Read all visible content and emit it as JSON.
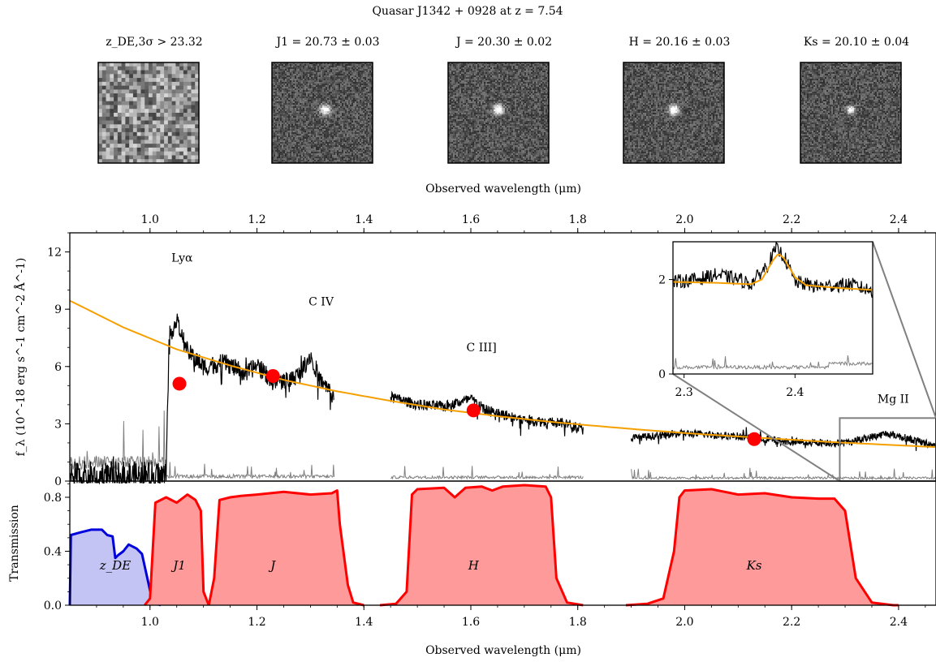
{
  "title": "Quasar J1342 + 0928 at z = 7.54",
  "stamps": [
    {
      "label": "z_DE,3σ > 23.32",
      "band": "zDE",
      "detected": false
    },
    {
      "label": "J1 = 20.73 ± 0.03",
      "band": "J1",
      "detected": true,
      "brightness": 0.85
    },
    {
      "label": "J = 20.30 ± 0.02",
      "band": "J",
      "detected": true,
      "brightness": 1.0
    },
    {
      "label": "H = 20.16 ± 0.03",
      "band": "H",
      "detected": true,
      "brightness": 0.95
    },
    {
      "label": "Ks = 20.10 ± 0.04",
      "band": "Ks",
      "detected": true,
      "brightness": 0.8
    }
  ],
  "colors": {
    "spectrum": "#000000",
    "noise": "#808080",
    "model": "#f5a000",
    "photometry": "#ff0000",
    "filter_red_fill": "#ff9a9a",
    "filter_red_line": "#ff0000",
    "filter_blue_fill": "#c4c4f4",
    "filter_blue_line": "#0000dd",
    "inset_box": "#808080"
  },
  "chart_data": [
    {
      "type": "line",
      "panel": "spectrum",
      "xlabel": "Observed wavelength (μm)",
      "ylabel": "f_λ (10^-18 erg s^-1 cm^-2 Å^-1)",
      "xlim": [
        0.85,
        2.47
      ],
      "ylim": [
        0,
        13
      ],
      "xticks": [
        1.0,
        1.2,
        1.4,
        1.6,
        1.8,
        2.0,
        2.2,
        2.4
      ],
      "yticks": [
        0,
        3,
        6,
        9,
        12
      ],
      "top_axis_ticks": [
        1.0,
        1.2,
        1.4,
        1.6,
        1.8,
        2.0,
        2.2,
        2.4
      ],
      "line_labels": [
        {
          "text": "Lyα",
          "x": 1.06,
          "y": 11.5
        },
        {
          "text": "C IV",
          "x": 1.32,
          "y": 9.2
        },
        {
          "text": "C III]",
          "x": 1.62,
          "y": 6.8
        },
        {
          "text": "Mg II",
          "x": 2.39,
          "y": 4.1
        }
      ],
      "model_continuum": [
        [
          0.85,
          9.45
        ],
        [
          0.95,
          8.05
        ],
        [
          1.05,
          6.9
        ],
        [
          1.15,
          6.05
        ],
        [
          1.25,
          5.3
        ],
        [
          1.35,
          4.7
        ],
        [
          1.45,
          4.2
        ],
        [
          1.55,
          3.75
        ],
        [
          1.65,
          3.4
        ],
        [
          1.75,
          3.1
        ],
        [
          1.85,
          2.85
        ],
        [
          1.95,
          2.62
        ],
        [
          2.05,
          2.42
        ],
        [
          2.15,
          2.25
        ],
        [
          2.25,
          2.08
        ],
        [
          2.35,
          1.94
        ],
        [
          2.47,
          1.78
        ]
      ],
      "spectrum_segments": [
        {
          "x_range": [
            0.85,
            1.03
          ],
          "level": 0.25,
          "scatter": 1.0
        },
        {
          "x_range": [
            1.03,
            1.345
          ],
          "anchors": [
            [
              1.03,
              0.5
            ],
            [
              1.036,
              7.6
            ],
            [
              1.05,
              8.4
            ],
            [
              1.07,
              6.8
            ],
            [
              1.1,
              6.0
            ],
            [
              1.14,
              6.2
            ],
            [
              1.18,
              5.6
            ],
            [
              1.2,
              6.1
            ],
            [
              1.23,
              5.2
            ],
            [
              1.26,
              5.3
            ],
            [
              1.28,
              5.6
            ],
            [
              1.3,
              6.6
            ],
            [
              1.32,
              5.2
            ],
            [
              1.345,
              4.4
            ]
          ],
          "scatter": 0.6
        },
        {
          "x_range": [
            1.45,
            1.81
          ],
          "anchors": [
            [
              1.45,
              4.4
            ],
            [
              1.5,
              4.0
            ],
            [
              1.55,
              3.9
            ],
            [
              1.6,
              4.3
            ],
            [
              1.63,
              3.7
            ],
            [
              1.7,
              3.2
            ],
            [
              1.78,
              3.0
            ],
            [
              1.81,
              2.7
            ]
          ],
          "scatter": 0.35
        },
        {
          "x_range": [
            1.9,
            2.47
          ],
          "anchors": [
            [
              1.9,
              2.25
            ],
            [
              2.0,
              2.5
            ],
            [
              2.1,
              2.35
            ],
            [
              2.2,
              2.05
            ],
            [
              2.3,
              2.0
            ],
            [
              2.38,
              2.5
            ],
            [
              2.47,
              1.85
            ]
          ],
          "scatter": 0.25
        }
      ],
      "noise_segments": [
        {
          "x_range": [
            0.85,
            1.03
          ],
          "level": 1.2
        },
        {
          "x_range": [
            1.03,
            1.345
          ],
          "level": 0.3
        },
        {
          "x_range": [
            1.45,
            1.81
          ],
          "level": 0.25
        },
        {
          "x_range": [
            1.9,
            2.47
          ],
          "level": 0.2
        }
      ],
      "photometry": [
        {
          "band": "J1",
          "x": 1.055,
          "y": 5.1
        },
        {
          "band": "J",
          "x": 1.23,
          "y": 5.5
        },
        {
          "band": "H",
          "x": 1.605,
          "y": 3.7
        },
        {
          "band": "Ks",
          "x": 2.13,
          "y": 2.2
        }
      ],
      "zoom_box": {
        "x": [
          2.29,
          2.47
        ],
        "y": [
          0,
          3.3
        ]
      }
    },
    {
      "type": "line",
      "panel": "inset",
      "xlim": [
        2.29,
        2.47
      ],
      "ylim": [
        0,
        2.8
      ],
      "xticks": [
        2.3,
        2.4
      ],
      "yticks": [
        0,
        2
      ],
      "model": [
        [
          2.29,
          1.95
        ],
        [
          2.33,
          1.93
        ],
        [
          2.36,
          1.9
        ],
        [
          2.37,
          2.0
        ],
        [
          2.38,
          2.4
        ],
        [
          2.385,
          2.55
        ],
        [
          2.39,
          2.45
        ],
        [
          2.4,
          2.05
        ],
        [
          2.41,
          1.88
        ],
        [
          2.44,
          1.82
        ],
        [
          2.47,
          1.78
        ]
      ],
      "spectrum_anchors": [
        [
          2.29,
          1.95
        ],
        [
          2.31,
          2.0
        ],
        [
          2.33,
          2.1
        ],
        [
          2.35,
          2.0
        ],
        [
          2.36,
          1.9
        ],
        [
          2.375,
          2.3
        ],
        [
          2.383,
          2.65
        ],
        [
          2.39,
          2.5
        ],
        [
          2.4,
          1.95
        ],
        [
          2.42,
          1.85
        ],
        [
          2.45,
          1.9
        ],
        [
          2.47,
          1.75
        ]
      ],
      "noise_level": 0.15
    },
    {
      "type": "area",
      "panel": "transmission",
      "ylabel": "Transmission",
      "xlabel": "Observed wavelength (μm)",
      "xlim": [
        0.85,
        2.47
      ],
      "ylim": [
        0,
        0.92
      ],
      "xticks": [
        1.0,
        1.2,
        1.4,
        1.6,
        1.8,
        2.0,
        2.2,
        2.4
      ],
      "yticks": [
        0.0,
        0.4,
        0.8
      ],
      "filters": [
        {
          "name": "zDE",
          "label": "z_DE",
          "color": "blue",
          "label_x": 0.935,
          "label_y": 0.3,
          "curve": [
            [
              0.85,
              0.0
            ],
            [
              0.852,
              0.52
            ],
            [
              0.87,
              0.54
            ],
            [
              0.89,
              0.56
            ],
            [
              0.91,
              0.56
            ],
            [
              0.92,
              0.52
            ],
            [
              0.93,
              0.51
            ],
            [
              0.935,
              0.35
            ],
            [
              0.94,
              0.37
            ],
            [
              0.95,
              0.4
            ],
            [
              0.96,
              0.45
            ],
            [
              0.975,
              0.42
            ],
            [
              0.985,
              0.38
            ],
            [
              0.995,
              0.2
            ],
            [
              1.005,
              0.02
            ],
            [
              1.02,
              0.0
            ]
          ]
        },
        {
          "name": "J1",
          "label": "J1",
          "color": "red",
          "label_x": 1.055,
          "label_y": 0.3,
          "curve": [
            [
              0.99,
              0.0
            ],
            [
              1.0,
              0.05
            ],
            [
              1.01,
              0.76
            ],
            [
              1.03,
              0.8
            ],
            [
              1.05,
              0.76
            ],
            [
              1.07,
              0.82
            ],
            [
              1.085,
              0.78
            ],
            [
              1.095,
              0.7
            ],
            [
              1.1,
              0.1
            ],
            [
              1.11,
              0.0
            ]
          ]
        },
        {
          "name": "J",
          "label": "J",
          "color": "red",
          "label_x": 1.23,
          "label_y": 0.3,
          "curve": [
            [
              1.11,
              0.0
            ],
            [
              1.12,
              0.2
            ],
            [
              1.13,
              0.78
            ],
            [
              1.15,
              0.8
            ],
            [
              1.17,
              0.81
            ],
            [
              1.2,
              0.82
            ],
            [
              1.25,
              0.84
            ],
            [
              1.3,
              0.82
            ],
            [
              1.34,
              0.83
            ],
            [
              1.35,
              0.85
            ],
            [
              1.355,
              0.6
            ],
            [
              1.37,
              0.15
            ],
            [
              1.38,
              0.02
            ],
            [
              1.4,
              0.0
            ]
          ]
        },
        {
          "name": "H",
          "label": "H",
          "color": "red",
          "label_x": 1.605,
          "label_y": 0.3,
          "curve": [
            [
              1.43,
              0.0
            ],
            [
              1.46,
              0.01
            ],
            [
              1.48,
              0.1
            ],
            [
              1.49,
              0.82
            ],
            [
              1.5,
              0.86
            ],
            [
              1.55,
              0.87
            ],
            [
              1.57,
              0.8
            ],
            [
              1.59,
              0.87
            ],
            [
              1.62,
              0.88
            ],
            [
              1.64,
              0.85
            ],
            [
              1.66,
              0.88
            ],
            [
              1.7,
              0.89
            ],
            [
              1.74,
              0.88
            ],
            [
              1.75,
              0.8
            ],
            [
              1.76,
              0.2
            ],
            [
              1.78,
              0.02
            ],
            [
              1.81,
              0.0
            ]
          ]
        },
        {
          "name": "Ks",
          "label": "Ks",
          "color": "red",
          "label_x": 2.13,
          "label_y": 0.3,
          "curve": [
            [
              1.89,
              0.0
            ],
            [
              1.93,
              0.01
            ],
            [
              1.96,
              0.05
            ],
            [
              1.98,
              0.4
            ],
            [
              1.99,
              0.8
            ],
            [
              2.0,
              0.85
            ],
            [
              2.05,
              0.86
            ],
            [
              2.1,
              0.82
            ],
            [
              2.15,
              0.83
            ],
            [
              2.2,
              0.8
            ],
            [
              2.25,
              0.79
            ],
            [
              2.28,
              0.79
            ],
            [
              2.3,
              0.7
            ],
            [
              2.32,
              0.2
            ],
            [
              2.35,
              0.02
            ],
            [
              2.39,
              0.0
            ],
            [
              2.4,
              0.0
            ]
          ]
        }
      ]
    }
  ]
}
